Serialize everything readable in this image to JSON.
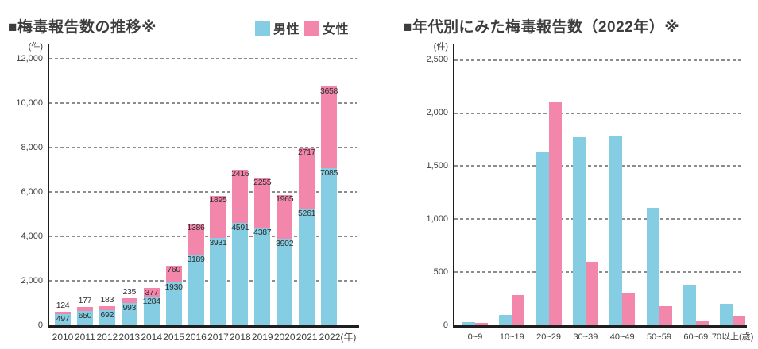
{
  "page": {
    "background": "#ffffff"
  },
  "colors": {
    "male": "#84CDE2",
    "female": "#F287AB",
    "text": "#3d3d3d",
    "grid": "#8c8c8c",
    "axis": "#1e1e1e"
  },
  "chart_data": [
    {
      "type": "bar",
      "subtype": "stacked",
      "title": "■梅毒報告数の推移※",
      "unit_label": "(件)",
      "categories": [
        "2010",
        "2011",
        "2012",
        "2013",
        "2014",
        "2015",
        "2016",
        "2017",
        "2018",
        "2019",
        "2020",
        "2021",
        "2022(年)"
      ],
      "series": [
        {
          "key": "male",
          "name": "男性",
          "color": "#84CDE2",
          "values": [
            497,
            650,
            692,
            993,
            1284,
            1930,
            3189,
            3931,
            4591,
            4387,
            3902,
            5261,
            7085
          ]
        },
        {
          "key": "female",
          "name": "女性",
          "color": "#F287AB",
          "values": [
            124,
            177,
            183,
            235,
            377,
            760,
            1386,
            1895,
            2416,
            2255,
            1965,
            2717,
            3658
          ]
        }
      ],
      "ylim": [
        0,
        12000
      ],
      "yticks": [
        {
          "value": 0,
          "label": "0"
        },
        {
          "value": 2000,
          "label": "2,000"
        },
        {
          "value": 4000,
          "label": "4,000"
        },
        {
          "value": 6000,
          "label": "6,000"
        },
        {
          "value": 8000,
          "label": "8,000"
        },
        {
          "value": 10000,
          "label": "10,000"
        },
        {
          "value": 12000,
          "label": "12,000"
        }
      ],
      "grid": true,
      "legend_position": "top-right",
      "value_labels": true
    },
    {
      "type": "bar",
      "subtype": "grouped",
      "title": "■年代別にみた梅毒報告数（2022年）※",
      "unit_label": "(件)",
      "categories": [
        "0~9",
        "10~19",
        "20~29",
        "30~39",
        "40~49",
        "50~59",
        "60~69",
        "70以上(歳)"
      ],
      "series": [
        {
          "key": "male",
          "name": "男性",
          "color": "#84CDE2",
          "values": [
            30,
            100,
            1630,
            1775,
            1780,
            1110,
            385,
            200
          ]
        },
        {
          "key": "female",
          "name": "女性",
          "color": "#F287AB",
          "values": [
            25,
            285,
            2100,
            600,
            310,
            180,
            40,
            90
          ]
        }
      ],
      "ylim": [
        0,
        2500
      ],
      "yticks": [
        {
          "value": 0,
          "label": "0"
        },
        {
          "value": 500,
          "label": "500"
        },
        {
          "value": 1000,
          "label": "1,000"
        },
        {
          "value": 1500,
          "label": "1,500"
        },
        {
          "value": 2000,
          "label": "2,000"
        },
        {
          "value": 2500,
          "label": "2,500"
        }
      ],
      "grid": true,
      "legend_position": "none",
      "value_labels": false
    }
  ]
}
